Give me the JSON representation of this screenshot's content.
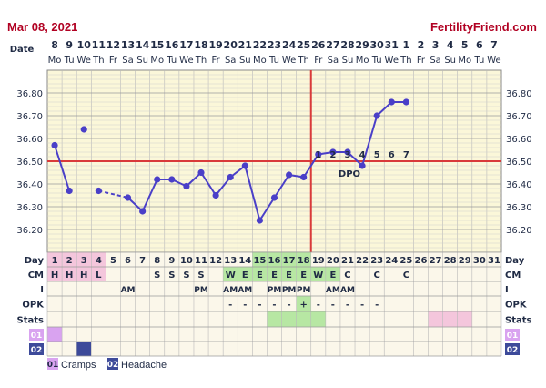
{
  "header": {
    "date": "Mar 08, 2021",
    "brand": "FertilityFriend.com"
  },
  "row_labels": {
    "date": "Date",
    "day": "Day",
    "cm": "CM",
    "i": "I",
    "opk": "OPK",
    "stats": "Stats",
    "r01": "01",
    "r02": "02"
  },
  "dates": [
    "8",
    "9",
    "10",
    "11",
    "12",
    "13",
    "14",
    "15",
    "16",
    "17",
    "18",
    "19",
    "20",
    "21",
    "22",
    "23",
    "24",
    "25",
    "26",
    "27",
    "28",
    "29",
    "30",
    "31",
    "1",
    "2",
    "3",
    "4",
    "5",
    "6",
    "7"
  ],
  "dows": [
    "Mo",
    "Tu",
    "We",
    "Th",
    "Fr",
    "Sa",
    "Su",
    "Mo",
    "Tu",
    "We",
    "Th",
    "Fr",
    "Sa",
    "Su",
    "Mo",
    "Tu",
    "We",
    "Th",
    "Fr",
    "Sa",
    "Su",
    "Mo",
    "Tu",
    "We",
    "Th",
    "Fr",
    "Sa",
    "Su",
    "Mo",
    "Tu",
    "We"
  ],
  "days": [
    "1",
    "2",
    "3",
    "4",
    "5",
    "6",
    "7",
    "8",
    "9",
    "10",
    "11",
    "12",
    "13",
    "14",
    "15",
    "16",
    "17",
    "18",
    "19",
    "20",
    "21",
    "22",
    "23",
    "24",
    "25",
    "26",
    "27",
    "28",
    "29",
    "30",
    "31"
  ],
  "cm": [
    "H",
    "H",
    "H",
    "L",
    "",
    "",
    "",
    "S",
    "S",
    "S",
    "S",
    "",
    "W",
    "E",
    "E",
    "E",
    "E",
    "E",
    "W",
    "E",
    "C",
    "",
    "C",
    "",
    "C",
    "",
    "",
    "",
    "",
    "",
    ""
  ],
  "intercourse": [
    "",
    "",
    "",
    "",
    "",
    "AM",
    "",
    "",
    "",
    "",
    "PM",
    "",
    "AM",
    "AM",
    "",
    "PM",
    "PM",
    "PM",
    "",
    "AM",
    "AM",
    "",
    "",
    "",
    "",
    "",
    "",
    "",
    "",
    "",
    ""
  ],
  "opk": [
    "",
    "",
    "",
    "",
    "",
    "",
    "",
    "",
    "",
    "",
    "",
    "",
    "-",
    "-",
    "-",
    "-",
    "-",
    "+",
    "-",
    "-",
    "-",
    "-",
    "-",
    "",
    "",
    "",
    "",
    "",
    "",
    "",
    ""
  ],
  "dpo": [
    "1",
    "2",
    "3",
    "4",
    "5",
    "6",
    "7"
  ],
  "dpo_label": "DPO",
  "legend": [
    {
      "code": "01",
      "label": "Cramps",
      "color": "#d9a3f0"
    },
    {
      "code": "02",
      "label": "Headache",
      "color": "#3d4a9a"
    }
  ],
  "colors": {
    "accent_red": "#d93a3a",
    "line_purple": "#4a3fc8",
    "grid_bg": "#fbf7d9",
    "mens_pink": "#f4c6dc",
    "fertile_green": "#b7e7a3"
  },
  "chart_data": {
    "type": "line",
    "x": [
      1,
      2,
      3,
      4,
      5,
      6,
      7,
      8,
      9,
      10,
      11,
      12,
      13,
      14,
      15,
      16,
      17,
      18,
      19,
      20,
      21,
      22,
      23,
      24,
      25
    ],
    "y": [
      36.57,
      36.37,
      36.64,
      36.37,
      null,
      36.34,
      36.28,
      36.42,
      36.42,
      36.39,
      36.45,
      36.35,
      36.43,
      36.48,
      36.24,
      36.34,
      36.44,
      36.43,
      36.53,
      36.54,
      36.54,
      36.48,
      36.7,
      36.76,
      36.76
    ],
    "ylim": [
      36.1,
      36.9
    ],
    "yticks": [
      "36.80",
      "36.70",
      "36.60",
      "36.50",
      "36.40",
      "36.30",
      "36.20"
    ],
    "coverline": 36.5,
    "ovulation_day": 18,
    "grid": true
  }
}
